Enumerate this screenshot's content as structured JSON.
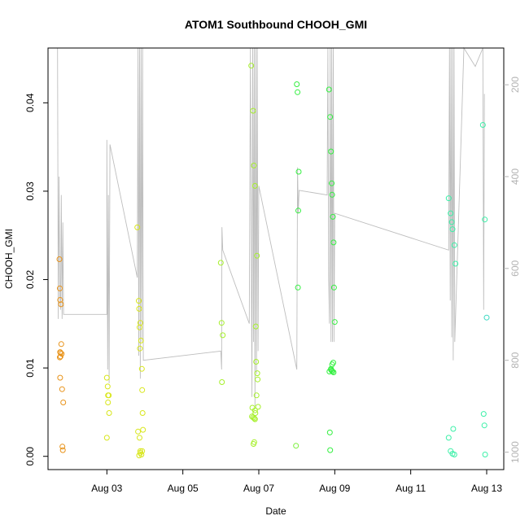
{
  "chart_data": {
    "type": "scatter",
    "title": "ATOM1 Southbound CHOOH_GMI",
    "xlabel": "Date",
    "ylabel": "CHOOH_GMI",
    "x_ticks": [
      "Aug 03",
      "Aug 05",
      "Aug 07",
      "Aug 09",
      "Aug 11",
      "Aug 13"
    ],
    "x_tick_days": [
      3,
      5,
      7,
      9,
      11,
      13
    ],
    "xlim": [
      1.45,
      13.45
    ],
    "ylim": [
      -0.0015,
      0.0462
    ],
    "y_ticks": [
      0.0,
      0.01,
      0.02,
      0.03,
      0.04
    ],
    "y_tick_labels": [
      "0.00",
      "0.01",
      "0.02",
      "0.03",
      "0.04"
    ],
    "y2_label": "",
    "y2_ticks": [
      200,
      400,
      600,
      800,
      1000
    ],
    "y2_range_top_bottom": [
      120,
      1038
    ],
    "grid": false,
    "legend": "none",
    "point_color_by_day": {
      "1": "#e8931a",
      "3": "#d8e61a",
      "4": "#dde61a",
      "6": "#a6f02a",
      "7": "#7af03a",
      "8": "#33f040",
      "9": "#3ef048",
      "12": "#3cf0a8",
      "13": "#3ad9c2"
    },
    "points_x": [
      1.75,
      1.76,
      1.77,
      1.79,
      1.8,
      1.78,
      1.81,
      1.76,
      1.77,
      1.82,
      1.85,
      1.83,
      1.84,
      1.77,
      1.78,
      3.0,
      3.02,
      3.05,
      3.03,
      3.06,
      3.0,
      3.03,
      3.8,
      3.84,
      3.85,
      3.88,
      3.86,
      3.9,
      3.87,
      3.92,
      3.93,
      3.94,
      3.95,
      3.82,
      3.86,
      3.88,
      3.91,
      3.85,
      3.88,
      3.93,
      6.0,
      6.02,
      6.05,
      6.03,
      6.8,
      6.85,
      6.87,
      6.9,
      6.95,
      6.92,
      6.93,
      6.96,
      6.97,
      6.94,
      6.98,
      6.9,
      6.82,
      6.85,
      6.88,
      6.91,
      6.86,
      6.88,
      6.83,
      6.9,
      8.0,
      8.02,
      8.05,
      8.04,
      8.03,
      7.98,
      8.85,
      8.88,
      8.9,
      8.92,
      8.93,
      8.95,
      8.97,
      8.98,
      9.0,
      8.96,
      8.9,
      8.92,
      8.94,
      8.86,
      8.87,
      8.88,
      8.9,
      8.93,
      8.97,
      12.0,
      12.05,
      12.08,
      12.1,
      12.15,
      12.18,
      12.12,
      12.0,
      12.05,
      12.1,
      12.15,
      12.9,
      12.95,
      13.0,
      12.92,
      12.94,
      12.96
    ],
    "points_y": [
      0.0223,
      0.019,
      0.0177,
      0.0172,
      0.0127,
      0.0117,
      0.0116,
      0.0112,
      0.0089,
      0.0076,
      0.0061,
      0.0011,
      0.0007,
      0.0118,
      0.0113,
      0.0089,
      0.0079,
      0.0069,
      0.0061,
      0.0049,
      0.0021,
      0.0069,
      0.0259,
      0.0176,
      0.0167,
      0.0151,
      0.0146,
      0.0131,
      0.0122,
      0.0099,
      0.0075,
      0.0049,
      0.003,
      0.0028,
      0.0021,
      0.0006,
      0.0002,
      0.0001,
      0.0004,
      0.0006,
      0.0219,
      0.0151,
      0.0137,
      0.0084,
      0.0442,
      0.0391,
      0.0329,
      0.0306,
      0.0227,
      0.0147,
      0.0107,
      0.0094,
      0.0087,
      0.0069,
      0.0056,
      0.0052,
      0.0045,
      0.0044,
      0.0043,
      0.0049,
      0.0014,
      0.0016,
      0.0055,
      0.0042,
      0.0421,
      0.0412,
      0.0322,
      0.0278,
      0.0191,
      0.0012,
      0.0415,
      0.0384,
      0.0345,
      0.0309,
      0.0296,
      0.0271,
      0.0242,
      0.0191,
      0.0152,
      0.0106,
      0.0099,
      0.0097,
      0.0096,
      0.0096,
      0.0027,
      0.0007,
      0.0098,
      0.0104,
      0.0095,
      0.0292,
      0.0275,
      0.0265,
      0.0257,
      0.0239,
      0.0218,
      0.0031,
      0.0021,
      0.0006,
      0.0003,
      0.0002,
      0.0375,
      0.0268,
      0.0157,
      0.0048,
      0.0035,
      0.0002
    ],
    "pressure_track": [
      [
        1.7,
        120
      ],
      [
        1.72,
        710
      ],
      [
        1.74,
        400
      ],
      [
        1.76,
        660
      ],
      [
        1.78,
        690
      ],
      [
        1.8,
        440
      ],
      [
        1.82,
        710
      ],
      [
        1.84,
        500
      ],
      [
        1.86,
        700
      ],
      [
        3.0,
        700
      ],
      [
        3.0,
        320
      ],
      [
        3.02,
        820
      ],
      [
        3.04,
        440
      ],
      [
        3.06,
        850
      ],
      [
        3.08,
        330
      ],
      [
        3.8,
        620
      ],
      [
        3.82,
        120
      ],
      [
        3.84,
        790
      ],
      [
        3.86,
        120
      ],
      [
        3.88,
        840
      ],
      [
        3.9,
        120
      ],
      [
        3.92,
        760
      ],
      [
        3.94,
        120
      ],
      [
        3.96,
        800
      ],
      [
        6.0,
        780
      ],
      [
        6.02,
        820
      ],
      [
        6.03,
        510
      ],
      [
        6.05,
        560
      ],
      [
        6.75,
        720
      ],
      [
        6.78,
        120
      ],
      [
        6.8,
        560
      ],
      [
        6.82,
        880
      ],
      [
        6.84,
        120
      ],
      [
        6.86,
        760
      ],
      [
        6.88,
        120
      ],
      [
        6.9,
        900
      ],
      [
        6.92,
        120
      ],
      [
        6.94,
        830
      ],
      [
        6.96,
        120
      ],
      [
        6.98,
        780
      ],
      [
        7.0,
        420
      ],
      [
        8.0,
        820
      ],
      [
        8.02,
        380
      ],
      [
        8.04,
        480
      ],
      [
        8.06,
        430
      ],
      [
        8.8,
        440
      ],
      [
        8.82,
        120
      ],
      [
        8.84,
        620
      ],
      [
        8.86,
        720
      ],
      [
        8.88,
        120
      ],
      [
        8.9,
        760
      ],
      [
        8.92,
        120
      ],
      [
        8.94,
        760
      ],
      [
        8.96,
        120
      ],
      [
        8.98,
        760
      ],
      [
        9.0,
        480
      ],
      [
        12.0,
        560
      ],
      [
        12.02,
        120
      ],
      [
        12.04,
        670
      ],
      [
        12.06,
        120
      ],
      [
        12.08,
        750
      ],
      [
        12.1,
        120
      ],
      [
        12.12,
        800
      ],
      [
        12.14,
        120
      ],
      [
        12.16,
        760
      ],
      [
        12.4,
        120
      ],
      [
        12.7,
        160
      ],
      [
        12.9,
        120
      ],
      [
        12.92,
        690
      ],
      [
        12.94,
        220
      ]
    ]
  }
}
